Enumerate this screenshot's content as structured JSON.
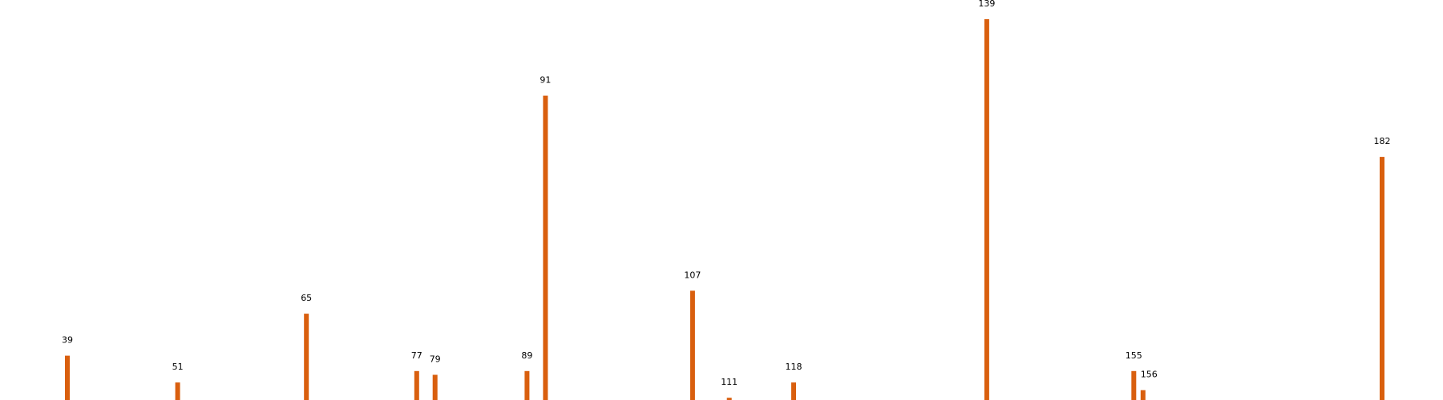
{
  "chart_data": {
    "type": "bar",
    "title": "",
    "xlabel": "",
    "ylabel": "",
    "color": "#d95f0e",
    "grid": false,
    "axes_visible": false,
    "x": [
      39,
      51,
      65,
      77,
      79,
      89,
      91,
      107,
      111,
      118,
      139,
      155,
      156,
      182
    ],
    "values": [
      12,
      5,
      23,
      8,
      7,
      8,
      80,
      29,
      1,
      5,
      100,
      8,
      3,
      64
    ],
    "labels": [
      "39",
      "51",
      "65",
      "77",
      "79",
      "89",
      "91",
      "107",
      "111",
      "118",
      "139",
      "155",
      "156",
      "182"
    ],
    "xlim": [
      32,
      190
    ],
    "ylim": [
      0,
      100
    ]
  }
}
